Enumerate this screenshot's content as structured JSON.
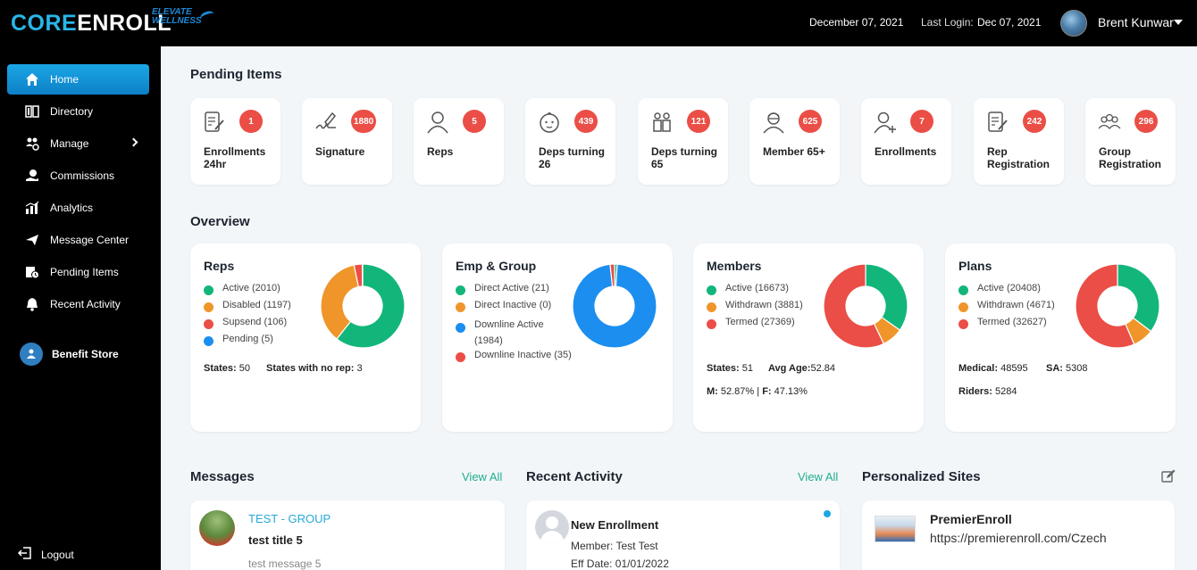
{
  "header": {
    "logo_core": "CORE",
    "logo_enroll": "ENROLL",
    "logo_sub_line1": "ELEVATE",
    "logo_sub_line2": "WELLNESS",
    "date": "December 07, 2021",
    "last_login_label": "Last Login:",
    "last_login_value": "Dec 07, 2021",
    "user_name": "Brent Kunwar"
  },
  "sidebar": {
    "items": [
      {
        "label": "Home",
        "icon": "home-icon",
        "active": true
      },
      {
        "label": "Directory",
        "icon": "book-icon"
      },
      {
        "label": "Manage",
        "icon": "users-cog-icon",
        "has_submenu": true
      },
      {
        "label": "Commissions",
        "icon": "money-hand-icon"
      },
      {
        "label": "Analytics",
        "icon": "chart-icon"
      },
      {
        "label": "Message Center",
        "icon": "paper-plane-icon"
      },
      {
        "label": "Pending Items",
        "icon": "pending-icon"
      },
      {
        "label": "Recent Activity",
        "icon": "bell-icon"
      }
    ],
    "benefit_store": "Benefit Store",
    "logout": "Logout"
  },
  "pending": {
    "title": "Pending Items",
    "cards": [
      {
        "label": "Enrollments 24hr",
        "count": "1",
        "icon": "form-pen-icon"
      },
      {
        "label": "Signature",
        "count": "1880",
        "icon": "signature-icon"
      },
      {
        "label": "Reps",
        "count": "5",
        "icon": "person-icon"
      },
      {
        "label": "Deps turning 26",
        "count": "439",
        "icon": "baby-icon"
      },
      {
        "label": "Deps turning 65",
        "count": "121",
        "icon": "family-icon"
      },
      {
        "label": "Member 65+",
        "count": "625",
        "icon": "elder-icon"
      },
      {
        "label": "Enrollments",
        "count": "7",
        "icon": "person-add-icon"
      },
      {
        "label": "Rep Registration",
        "count": "242",
        "icon": "form-pen-icon"
      },
      {
        "label": "Group Registration",
        "count": "296",
        "icon": "group-icon"
      }
    ]
  },
  "overview": {
    "title": "Overview",
    "cards": [
      {
        "title": "Reps",
        "legend": [
          "Active (2010)",
          "Disabled (1197)",
          "Supsend (106)",
          "Pending (5)"
        ],
        "colors": [
          "#12b67a",
          "#f0952a",
          "#ea4e46",
          "#1b8ef0"
        ],
        "values": [
          2010,
          1197,
          106,
          5
        ],
        "stats": [
          {
            "label": "States:",
            "value": "50"
          },
          {
            "label": "States with no rep:",
            "value": "3"
          }
        ]
      },
      {
        "title": "Emp & Group",
        "legend": [
          "Direct Active (21)",
          "Direct Inactive (0)",
          "Downline Active (1984)",
          "Downline Inactive (35)"
        ],
        "colors": [
          "#12b67a",
          "#f0952a",
          "#1b8ef0",
          "#ea4e46"
        ],
        "values": [
          21,
          0,
          1984,
          35
        ],
        "stats": []
      },
      {
        "title": "Members",
        "legend": [
          "Active (16673)",
          "Withdrawn (3881)",
          "Termed (27369)"
        ],
        "colors": [
          "#12b67a",
          "#f0952a",
          "#ea4e46"
        ],
        "values": [
          16673,
          3881,
          27369
        ],
        "stats": [
          {
            "label": "States:",
            "value": "51"
          },
          {
            "label": "Avg Age:",
            "value": "52.84"
          },
          {
            "label": "M:",
            "value": "52.87% |"
          },
          {
            "label": "F:",
            "value": "47.13%"
          }
        ]
      },
      {
        "title": "Plans",
        "legend": [
          "Active (20408)",
          "Withdrawn (4671)",
          "Termed (32627)"
        ],
        "colors": [
          "#12b67a",
          "#f0952a",
          "#ea4e46"
        ],
        "values": [
          20408,
          4671,
          32627
        ],
        "stats": [
          {
            "label": "Medical:",
            "value": "48595"
          },
          {
            "label": "SA:",
            "value": "5308"
          },
          {
            "label": "Riders:",
            "value": "5284"
          }
        ]
      }
    ]
  },
  "messages": {
    "title": "Messages",
    "view_all": "View All",
    "item": {
      "group": "TEST - GROUP",
      "title": "test title 5",
      "body": "test message 5"
    }
  },
  "recent_activity": {
    "title": "Recent Activity",
    "view_all": "View All",
    "item": {
      "title": "New Enrollment",
      "member": "Member: Test Test",
      "eff_date": "Eff Date: 01/01/2022"
    }
  },
  "personalized_sites": {
    "title": "Personalized Sites",
    "item": {
      "name": "PremierEnroll",
      "url": "https://premierenroll.com/Czech"
    }
  }
}
